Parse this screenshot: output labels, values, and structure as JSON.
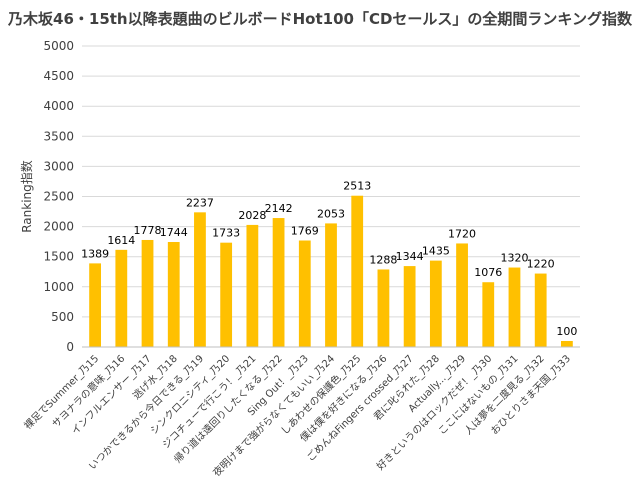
{
  "chart_data": {
    "type": "bar",
    "title": "乃木坂46・15th以降表題曲のビルボードHot100「CDセールス」の全期間ランキング指数",
    "ylabel": "Ranking指数",
    "xlabel": "",
    "ylim": [
      0,
      5000
    ],
    "yticks": [
      0,
      500,
      1000,
      1500,
      2000,
      2500,
      3000,
      3500,
      4000,
      4500,
      5000
    ],
    "grid": true,
    "bar_color": "#FFC000",
    "categories": [
      "裸足でSummer_乃15",
      "サヨナラの意味_乃16",
      "インフルエンサー_乃17",
      "逃げ水_乃18",
      "いつかできるから今日できる_乃19",
      "シンクロニシティ_乃20",
      "ジコチューで行こう！_乃21",
      "帰り道は遠回りしたくなる_乃22",
      "Sing Out！_乃23",
      "夜明けまで強がらなくてもいい_乃24",
      "しあわせの保護色_乃25",
      "僕は僕を好きになる_乃26",
      "ごめんねFingers crossed_乃27",
      "君に叱られた_乃28",
      "Actually..._乃29",
      "好きというのはロックだぜ！_乃30",
      "ここにはないもの_乃31",
      "人は夢を二度見る_乃32",
      "おひとりさま天国_乃33"
    ],
    "values": [
      1389,
      1614,
      1778,
      1744,
      2237,
      1733,
      2028,
      2142,
      1769,
      2053,
      2513,
      1288,
      1344,
      1435,
      1720,
      1076,
      1320,
      1220,
      100
    ]
  }
}
